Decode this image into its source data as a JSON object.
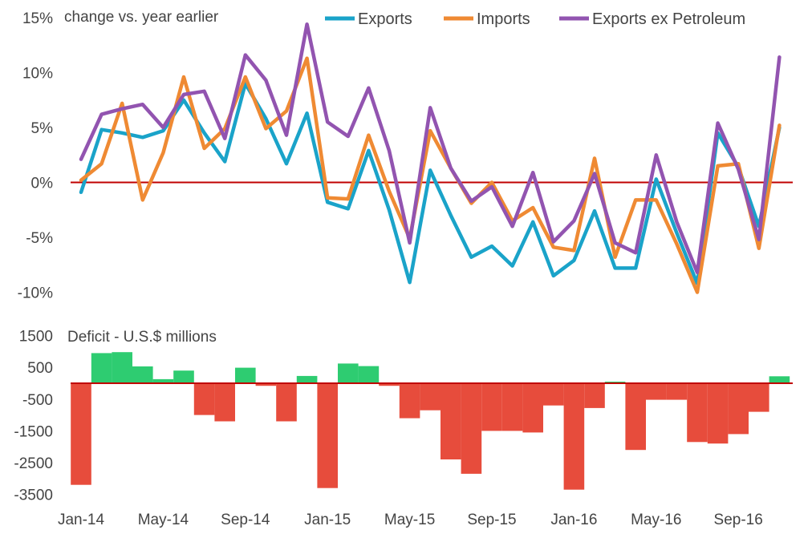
{
  "chart_data": [
    {
      "type": "line",
      "title": "change vs. year earlier",
      "ylabel": "",
      "ylim": [
        -10,
        15
      ],
      "yticks": [
        "-10%",
        "-5%",
        "0%",
        "5%",
        "10%",
        "15%"
      ],
      "yticks_values": [
        -10,
        -5,
        0,
        5,
        10,
        15
      ],
      "zero_line_color": "#c00000",
      "legend_position": "top-right",
      "x": [
        "Jan-14",
        "Feb-14",
        "Mar-14",
        "Apr-14",
        "May-14",
        "Jun-14",
        "Jul-14",
        "Aug-14",
        "Sep-14",
        "Oct-14",
        "Nov-14",
        "Dec-14",
        "Jan-15",
        "Feb-15",
        "Mar-15",
        "Apr-15",
        "May-15",
        "Jun-15",
        "Jul-15",
        "Aug-15",
        "Sep-15",
        "Oct-15",
        "Nov-15",
        "Dec-15",
        "Jan-16",
        "Feb-16",
        "Mar-16",
        "Apr-16",
        "May-16",
        "Jun-16",
        "Jul-16",
        "Aug-16",
        "Sep-16",
        "Oct-16",
        "Nov-16"
      ],
      "series": [
        {
          "name": "Exports",
          "color": "#1aa3c9",
          "values": [
            -0.9,
            4.8,
            4.5,
            4.1,
            4.7,
            7.5,
            4.5,
            1.9,
            9.0,
            5.8,
            1.7,
            6.3,
            -1.8,
            -2.4,
            2.9,
            -2.5,
            -9.1,
            1.1,
            -3.0,
            -6.8,
            -5.8,
            -7.6,
            -3.6,
            -8.5,
            -7.1,
            -2.6,
            -7.8,
            -7.8,
            0.3,
            -4.6,
            -9.2,
            4.5,
            1.4,
            -4.0,
            5.0
          ]
        },
        {
          "name": "Imports",
          "color": "#ef8a33",
          "values": [
            0.2,
            1.7,
            7.2,
            -1.6,
            2.7,
            9.6,
            3.1,
            4.9,
            9.6,
            4.9,
            6.5,
            11.3,
            -1.4,
            -1.5,
            4.3,
            -0.8,
            -5.1,
            4.7,
            1.3,
            -1.9,
            0.0,
            -3.5,
            -2.3,
            -5.9,
            -6.2,
            2.2,
            -6.8,
            -1.6,
            -1.6,
            -5.6,
            -10.0,
            1.5,
            1.7,
            -6.0,
            5.2
          ]
        },
        {
          "name": "Exports ex Petroleum",
          "color": "#9254b0",
          "values": [
            2.1,
            6.2,
            6.7,
            7.1,
            5.0,
            8.0,
            8.3,
            4.0,
            11.6,
            9.3,
            4.3,
            14.4,
            5.5,
            4.2,
            8.6,
            2.9,
            -5.5,
            6.8,
            1.3,
            -1.7,
            -0.4,
            -4.0,
            0.9,
            -5.4,
            -3.5,
            0.8,
            -5.5,
            -6.4,
            2.5,
            -3.6,
            -8.2,
            5.4,
            1.2,
            -5.2,
            11.4
          ]
        }
      ]
    },
    {
      "type": "bar",
      "title": "Deficit - U.S.$ millions",
      "ylim": [
        -3500,
        1500
      ],
      "yticks": [
        "-3500",
        "-2500",
        "-1500",
        "-500",
        "500",
        "1500"
      ],
      "yticks_values": [
        -3500,
        -2500,
        -1500,
        -500,
        500,
        1500
      ],
      "positive_color": "#2ecc71",
      "negative_color": "#e74c3c",
      "zero_line_color": "#c00000",
      "xtick_labels": [
        "Jan-14",
        "May-14",
        "Sep-14",
        "Jan-15",
        "May-15",
        "Sep-15",
        "Jan-16",
        "May-16",
        "Sep-16"
      ],
      "x": [
        "Jan-14",
        "Feb-14",
        "Mar-14",
        "Apr-14",
        "May-14",
        "Jun-14",
        "Jul-14",
        "Aug-14",
        "Sep-14",
        "Oct-14",
        "Nov-14",
        "Dec-14",
        "Jan-15",
        "Feb-15",
        "Mar-15",
        "Apr-15",
        "May-15",
        "Jun-15",
        "Jul-15",
        "Aug-15",
        "Sep-15",
        "Oct-15",
        "Nov-15",
        "Dec-15",
        "Jan-16",
        "Feb-16",
        "Mar-16",
        "Apr-16",
        "May-16",
        "Jun-16",
        "Jul-16",
        "Aug-16",
        "Sep-16",
        "Oct-16",
        "Nov-16"
      ],
      "values": [
        -3200,
        950,
        980,
        530,
        130,
        400,
        -1000,
        -1200,
        490,
        -80,
        -1200,
        230,
        -3300,
        620,
        540,
        -80,
        -1100,
        -850,
        -2400,
        -2850,
        -1500,
        -1500,
        -1550,
        -700,
        -3350,
        -780,
        50,
        -2100,
        -520,
        -520,
        -1850,
        -1900,
        -1600,
        -900,
        220
      ]
    }
  ]
}
